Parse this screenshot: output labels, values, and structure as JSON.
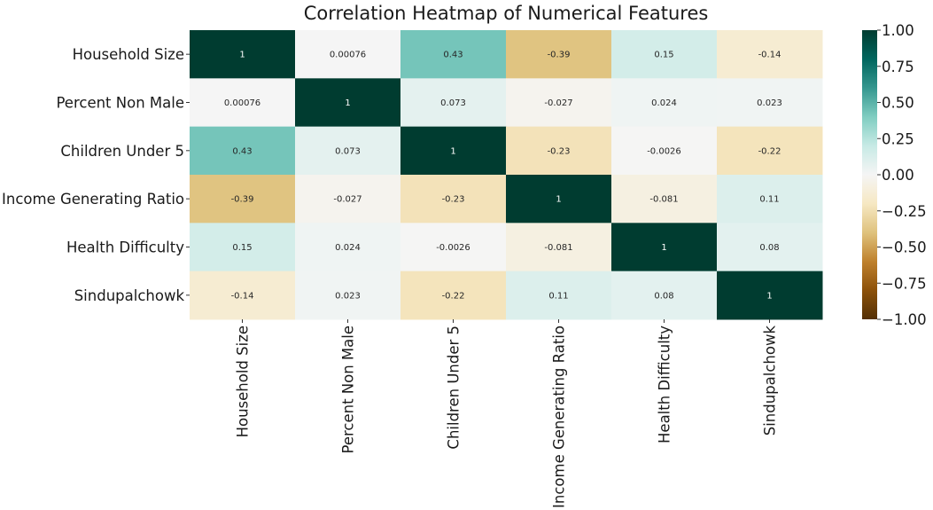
{
  "chart_data": {
    "type": "heatmap",
    "title": "Correlation Heatmap of Numerical Features",
    "rows": [
      "Household Size",
      "Percent Non Male",
      "Children Under 5",
      "Income Generating Ratio",
      "Health Difficulty",
      "Sindupalchowk"
    ],
    "columns": [
      "Household Size",
      "Percent Non Male",
      "Children Under 5",
      "Income Generating Ratio",
      "Health Difficulty",
      "Sindupalchowk"
    ],
    "values": [
      [
        1,
        0.00076,
        0.43,
        -0.39,
        0.15,
        -0.14
      ],
      [
        0.00076,
        1,
        0.073,
        -0.027,
        0.024,
        0.023
      ],
      [
        0.43,
        0.073,
        1,
        -0.23,
        -0.0026,
        -0.22
      ],
      [
        -0.39,
        -0.027,
        -0.23,
        1,
        -0.081,
        0.11
      ],
      [
        0.15,
        0.024,
        -0.0026,
        -0.081,
        1,
        0.08
      ],
      [
        -0.14,
        0.023,
        -0.22,
        0.11,
        0.08,
        1
      ]
    ],
    "annotations": [
      [
        "1",
        "0.00076",
        "0.43",
        "-0.39",
        "0.15",
        "-0.14"
      ],
      [
        "0.00076",
        "1",
        "0.073",
        "-0.027",
        "0.024",
        "0.023"
      ],
      [
        "0.43",
        "0.073",
        "1",
        "-0.23",
        "-0.0026",
        "-0.22"
      ],
      [
        "-0.39",
        "-0.027",
        "-0.23",
        "1",
        "-0.081",
        "0.11"
      ],
      [
        "0.15",
        "0.024",
        "-0.0026",
        "-0.081",
        "1",
        "0.08"
      ],
      [
        "-0.14",
        "0.023",
        "-0.22",
        "0.11",
        "0.08",
        "1"
      ]
    ],
    "colorbar": {
      "vmin": -1,
      "vmax": 1,
      "ticks": [
        "1.00",
        "0.75",
        "0.50",
        "0.25",
        "0.00",
        "−0.25",
        "−0.50",
        "−0.75",
        "−1.00"
      ],
      "colormap": "BrBG",
      "colormap_stops": [
        "#543005",
        "#8c510a",
        "#bf812d",
        "#dfc27d",
        "#f6e8c3",
        "#f5f5f5",
        "#c7eae5",
        "#80cdc1",
        "#35978f",
        "#01665e",
        "#003c30"
      ]
    }
  }
}
